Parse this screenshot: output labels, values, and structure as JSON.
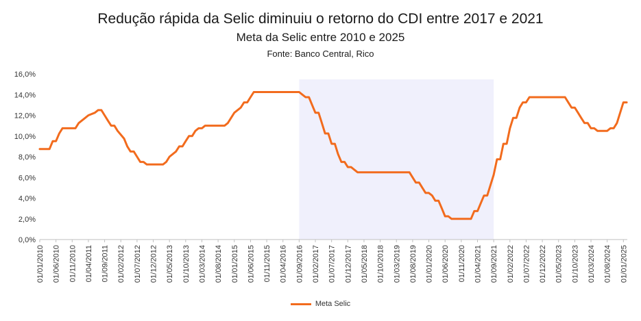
{
  "chart_data": {
    "type": "line",
    "title": "Redução rápida da Selic diminuiu o retorno do CDI entre 2017 e 2021",
    "subtitle": "Meta da Selic entre 2010 e 2025",
    "source": "Fonte: Banco Central, Rico",
    "y_ticks": [
      "0,0%",
      "2,0%",
      "4,0%",
      "6,0%",
      "8,0%",
      "10,0%",
      "12,0%",
      "14,0%",
      "16,0%"
    ],
    "ylim": [
      0,
      16
    ],
    "x_ticks": [
      "01/01/2010",
      "01/06/2010",
      "01/11/2010",
      "01/04/2011",
      "01/09/2011",
      "01/02/2012",
      "01/07/2012",
      "01/12/2012",
      "01/05/2013",
      "01/10/2013",
      "01/03/2014",
      "01/08/2014",
      "01/01/2015",
      "01/06/2015",
      "01/11/2015",
      "01/04/2016",
      "01/09/2016",
      "01/02/2017",
      "01/07/2017",
      "01/12/2017",
      "01/05/2018",
      "01/10/2018",
      "01/03/2019",
      "01/08/2019",
      "01/01/2020",
      "01/06/2020",
      "01/11/2020",
      "01/04/2021",
      "01/09/2021",
      "01/02/2022",
      "01/07/2022",
      "01/12/2022",
      "01/05/2023",
      "01/10/2023",
      "01/03/2024",
      "01/08/2024",
      "01/01/2025"
    ],
    "highlight_range": [
      "2016-09",
      "2021-09"
    ],
    "highlight_color": "#F0F0FC",
    "series": [
      {
        "name": "Meta Selic",
        "color": "#F26B1D",
        "points": [
          [
            "2010-01",
            8.75
          ],
          [
            "2010-04",
            8.75
          ],
          [
            "2010-05",
            9.5
          ],
          [
            "2010-06",
            9.5
          ],
          [
            "2010-07",
            10.25
          ],
          [
            "2010-08",
            10.75
          ],
          [
            "2010-12",
            10.75
          ],
          [
            "2011-01",
            11.25
          ],
          [
            "2011-03",
            11.75
          ],
          [
            "2011-04",
            12.0
          ],
          [
            "2011-06",
            12.25
          ],
          [
            "2011-07",
            12.5
          ],
          [
            "2011-08",
            12.5
          ],
          [
            "2011-09",
            12.0
          ],
          [
            "2011-10",
            11.5
          ],
          [
            "2011-11",
            11.0
          ],
          [
            "2011-12",
            11.0
          ],
          [
            "2012-01",
            10.5
          ],
          [
            "2012-03",
            9.75
          ],
          [
            "2012-04",
            9.0
          ],
          [
            "2012-05",
            8.5
          ],
          [
            "2012-06",
            8.5
          ],
          [
            "2012-07",
            8.0
          ],
          [
            "2012-08",
            7.5
          ],
          [
            "2012-09",
            7.5
          ],
          [
            "2012-10",
            7.25
          ],
          [
            "2013-03",
            7.25
          ],
          [
            "2013-04",
            7.5
          ],
          [
            "2013-05",
            8.0
          ],
          [
            "2013-07",
            8.5
          ],
          [
            "2013-08",
            9.0
          ],
          [
            "2013-09",
            9.0
          ],
          [
            "2013-10",
            9.5
          ],
          [
            "2013-11",
            10.0
          ],
          [
            "2013-12",
            10.0
          ],
          [
            "2014-01",
            10.5
          ],
          [
            "2014-02",
            10.75
          ],
          [
            "2014-03",
            10.75
          ],
          [
            "2014-04",
            11.0
          ],
          [
            "2014-10",
            11.0
          ],
          [
            "2014-11",
            11.25
          ],
          [
            "2014-12",
            11.75
          ],
          [
            "2015-01",
            12.25
          ],
          [
            "2015-03",
            12.75
          ],
          [
            "2015-04",
            13.25
          ],
          [
            "2015-05",
            13.25
          ],
          [
            "2015-06",
            13.75
          ],
          [
            "2015-07",
            14.25
          ],
          [
            "2016-09",
            14.25
          ],
          [
            "2016-10",
            14.0
          ],
          [
            "2016-11",
            13.75
          ],
          [
            "2016-12",
            13.75
          ],
          [
            "2017-01",
            13.0
          ],
          [
            "2017-02",
            12.25
          ],
          [
            "2017-03",
            12.25
          ],
          [
            "2017-04",
            11.25
          ],
          [
            "2017-05",
            10.25
          ],
          [
            "2017-06",
            10.25
          ],
          [
            "2017-07",
            9.25
          ],
          [
            "2017-08",
            9.25
          ],
          [
            "2017-09",
            8.25
          ],
          [
            "2017-10",
            7.5
          ],
          [
            "2017-11",
            7.5
          ],
          [
            "2017-12",
            7.0
          ],
          [
            "2018-01",
            7.0
          ],
          [
            "2018-02",
            6.75
          ],
          [
            "2018-03",
            6.5
          ],
          [
            "2019-07",
            6.5
          ],
          [
            "2019-08",
            6.0
          ],
          [
            "2019-09",
            5.5
          ],
          [
            "2019-10",
            5.5
          ],
          [
            "2019-11",
            5.0
          ],
          [
            "2019-12",
            4.5
          ],
          [
            "2020-01",
            4.5
          ],
          [
            "2020-02",
            4.25
          ],
          [
            "2020-03",
            3.75
          ],
          [
            "2020-04",
            3.75
          ],
          [
            "2020-05",
            3.0
          ],
          [
            "2020-06",
            2.25
          ],
          [
            "2020-07",
            2.25
          ],
          [
            "2020-08",
            2.0
          ],
          [
            "2021-02",
            2.0
          ],
          [
            "2021-03",
            2.75
          ],
          [
            "2021-04",
            2.75
          ],
          [
            "2021-05",
            3.5
          ],
          [
            "2021-06",
            4.25
          ],
          [
            "2021-07",
            4.25
          ],
          [
            "2021-08",
            5.25
          ],
          [
            "2021-09",
            6.25
          ],
          [
            "2021-10",
            7.75
          ],
          [
            "2021-11",
            7.75
          ],
          [
            "2021-12",
            9.25
          ],
          [
            "2022-01",
            9.25
          ],
          [
            "2022-02",
            10.75
          ],
          [
            "2022-03",
            11.75
          ],
          [
            "2022-04",
            11.75
          ],
          [
            "2022-05",
            12.75
          ],
          [
            "2022-06",
            13.25
          ],
          [
            "2022-07",
            13.25
          ],
          [
            "2022-08",
            13.75
          ],
          [
            "2023-07",
            13.75
          ],
          [
            "2023-08",
            13.25
          ],
          [
            "2023-09",
            12.75
          ],
          [
            "2023-10",
            12.75
          ],
          [
            "2023-11",
            12.25
          ],
          [
            "2023-12",
            11.75
          ],
          [
            "2024-01",
            11.25
          ],
          [
            "2024-02",
            11.25
          ],
          [
            "2024-03",
            10.75
          ],
          [
            "2024-04",
            10.75
          ],
          [
            "2024-05",
            10.5
          ],
          [
            "2024-08",
            10.5
          ],
          [
            "2024-09",
            10.75
          ],
          [
            "2024-10",
            10.75
          ],
          [
            "2024-11",
            11.25
          ],
          [
            "2024-12",
            12.25
          ],
          [
            "2025-01",
            13.25
          ],
          [
            "2025-02",
            13.25
          ]
        ]
      }
    ]
  }
}
